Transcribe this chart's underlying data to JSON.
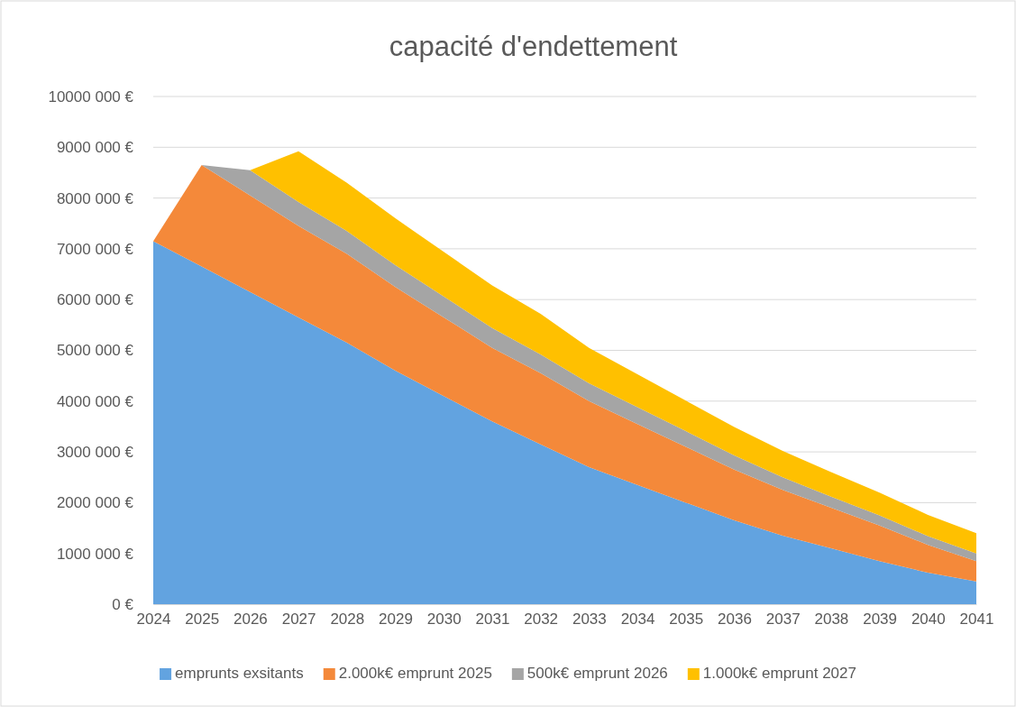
{
  "chart_data": {
    "type": "area",
    "title": "capacité d'endettement",
    "stacked": true,
    "grid": "y",
    "legend": "bottom",
    "categories": [
      "2024",
      "2025",
      "2026",
      "2027",
      "2028",
      "2029",
      "2030",
      "2031",
      "2032",
      "2033",
      "2034",
      "2035",
      "2036",
      "2037",
      "2038",
      "2039",
      "2040",
      "2041"
    ],
    "ylim": [
      0,
      10000000
    ],
    "yticks": [
      {
        "value": 0,
        "label": "0 €"
      },
      {
        "value": 1000000,
        "label": "1000 000 €"
      },
      {
        "value": 2000000,
        "label": "2000 000 €"
      },
      {
        "value": 3000000,
        "label": "3000 000 €"
      },
      {
        "value": 4000000,
        "label": "4000 000 €"
      },
      {
        "value": 5000000,
        "label": "5000 000 €"
      },
      {
        "value": 6000000,
        "label": "6000 000 €"
      },
      {
        "value": 7000000,
        "label": "7000 000 €"
      },
      {
        "value": 8000000,
        "label": "8000 000 €"
      },
      {
        "value": 9000000,
        "label": "9000 000 €"
      },
      {
        "value": 10000000,
        "label": "10000 000 €"
      }
    ],
    "series": [
      {
        "name": "emprunts exsitants",
        "color": "#62a3e0",
        "values": [
          7150000,
          6650000,
          6150000,
          5650000,
          5150000,
          4600000,
          4100000,
          3600000,
          3150000,
          2700000,
          2350000,
          2000000,
          1650000,
          1350000,
          1100000,
          850000,
          620000,
          450000
        ]
      },
      {
        "name": "2.000k€ emprunt 2025",
        "color": "#f4893a",
        "values": [
          0,
          2000000,
          1900000,
          1800000,
          1750000,
          1650000,
          1550000,
          1450000,
          1400000,
          1300000,
          1200000,
          1100000,
          1000000,
          900000,
          800000,
          700000,
          550000,
          400000
        ]
      },
      {
        "name": "500k€ emprunt 2026",
        "color": "#a5a5a5",
        "values": [
          0,
          0,
          500000,
          470000,
          450000,
          430000,
          410000,
          390000,
          370000,
          350000,
          330000,
          310000,
          280000,
          250000,
          220000,
          200000,
          170000,
          150000
        ]
      },
      {
        "name": "1.000k€ emprunt 2027",
        "color": "#ffc000",
        "values": [
          0,
          0,
          0,
          1000000,
          950000,
          920000,
          880000,
          840000,
          800000,
          700000,
          650000,
          600000,
          560000,
          520000,
          480000,
          450000,
          420000,
          400000
        ]
      }
    ]
  }
}
